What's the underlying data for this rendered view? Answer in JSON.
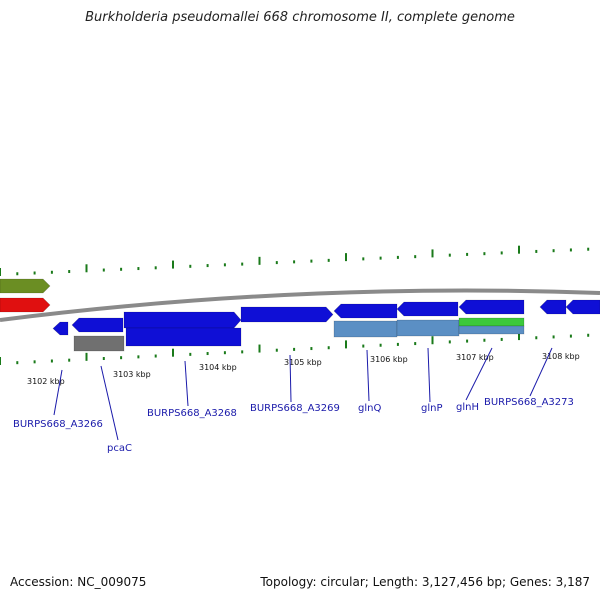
{
  "title": "Burkholderia pseudomallei 668 chromosome II, complete genome",
  "footer": {
    "accession": "Accession: NC_009075",
    "summary": "Topology: circular; Length: 3,127,456 bp; Genes: 3,187"
  },
  "colors": {
    "backbone": "#8a8a8a",
    "tick": "#1a7a1a",
    "gene": "#0f0fd6",
    "gene_alt": "#5b8fc4",
    "gene_gray": "#707070",
    "gene_green": "#3cc93c",
    "gene_red": "#e01010",
    "gene_olive": "#6b8e23",
    "label": "#1a1aaa"
  },
  "scale": {
    "labels": [
      {
        "text": "3102 kbp",
        "kbp": 3102
      },
      {
        "text": "3103 kbp",
        "kbp": 3103
      },
      {
        "text": "3104 kbp",
        "kbp": 3104
      },
      {
        "text": "3105 kbp",
        "kbp": 3105
      },
      {
        "text": "3106 kbp",
        "kbp": 3106
      },
      {
        "text": "3107 kbp",
        "kbp": 3107
      },
      {
        "text": "3108 kbp",
        "kbp": 3108
      }
    ]
  },
  "genes": [
    {
      "id": "gene-01",
      "strand": "minus",
      "color": "gene",
      "name": ""
    },
    {
      "id": "gene-02",
      "strand": "plus",
      "color": "gene",
      "name": ""
    },
    {
      "id": "gene-03",
      "strand": "plus",
      "color": "gene",
      "name": ""
    },
    {
      "id": "gene-04",
      "strand": "plus",
      "color": "gene",
      "name": ""
    },
    {
      "id": "gene-05",
      "strand": "minus",
      "color": "gene",
      "name": ""
    },
    {
      "id": "gene-06",
      "strand": "plus",
      "color": "gene",
      "name": ""
    },
    {
      "id": "gene-07",
      "strand": "minus",
      "color": "gene",
      "name": ""
    },
    {
      "id": "gene-08",
      "strand": "minus",
      "color": "gene",
      "name": ""
    },
    {
      "id": "gene-09",
      "strand": "plus",
      "color": "gene",
      "name": ""
    }
  ],
  "gene_labels": [
    {
      "text": "BURPS668_A3266"
    },
    {
      "text": "pcaC"
    },
    {
      "text": "BURPS668_A3268"
    },
    {
      "text": "BURPS668_A3269"
    },
    {
      "text": "glnQ"
    },
    {
      "text": "glnP"
    },
    {
      "text": "glnH"
    },
    {
      "text": "BURPS668_A3273"
    }
  ]
}
